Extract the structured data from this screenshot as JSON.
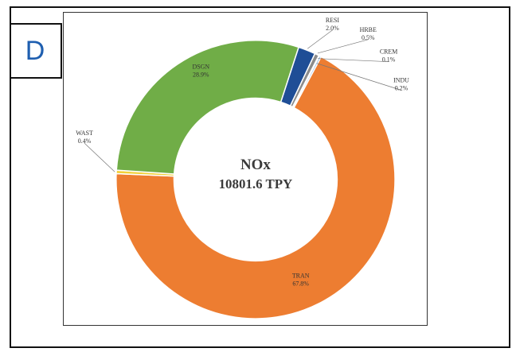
{
  "panel_letter": "D",
  "chart_data": {
    "type": "pie",
    "center_title": "NOx",
    "center_subtitle": "10801.6 TPY",
    "slices": [
      {
        "code": "RESI",
        "pct_label": "2.0%",
        "value": 2.0,
        "color": "#1f4e96"
      },
      {
        "code": "HRBE",
        "pct_label": "0.5%",
        "value": 0.5,
        "color": "#8c8c8c"
      },
      {
        "code": "CREM",
        "pct_label": "0.1%",
        "value": 0.1,
        "color": "#4a78c8"
      },
      {
        "code": "INDU",
        "pct_label": "0.2%",
        "value": 0.2,
        "color": "#6fa0dc"
      },
      {
        "code": "TRAN",
        "pct_label": "67.8%",
        "value": 67.8,
        "color": "#ed7d31"
      },
      {
        "code": "WAST",
        "pct_label": "0.4%",
        "value": 0.4,
        "color": "#f2d13a"
      },
      {
        "code": "DSGN",
        "pct_label": "28.9%",
        "value": 28.9,
        "color": "#70ad47"
      }
    ]
  }
}
